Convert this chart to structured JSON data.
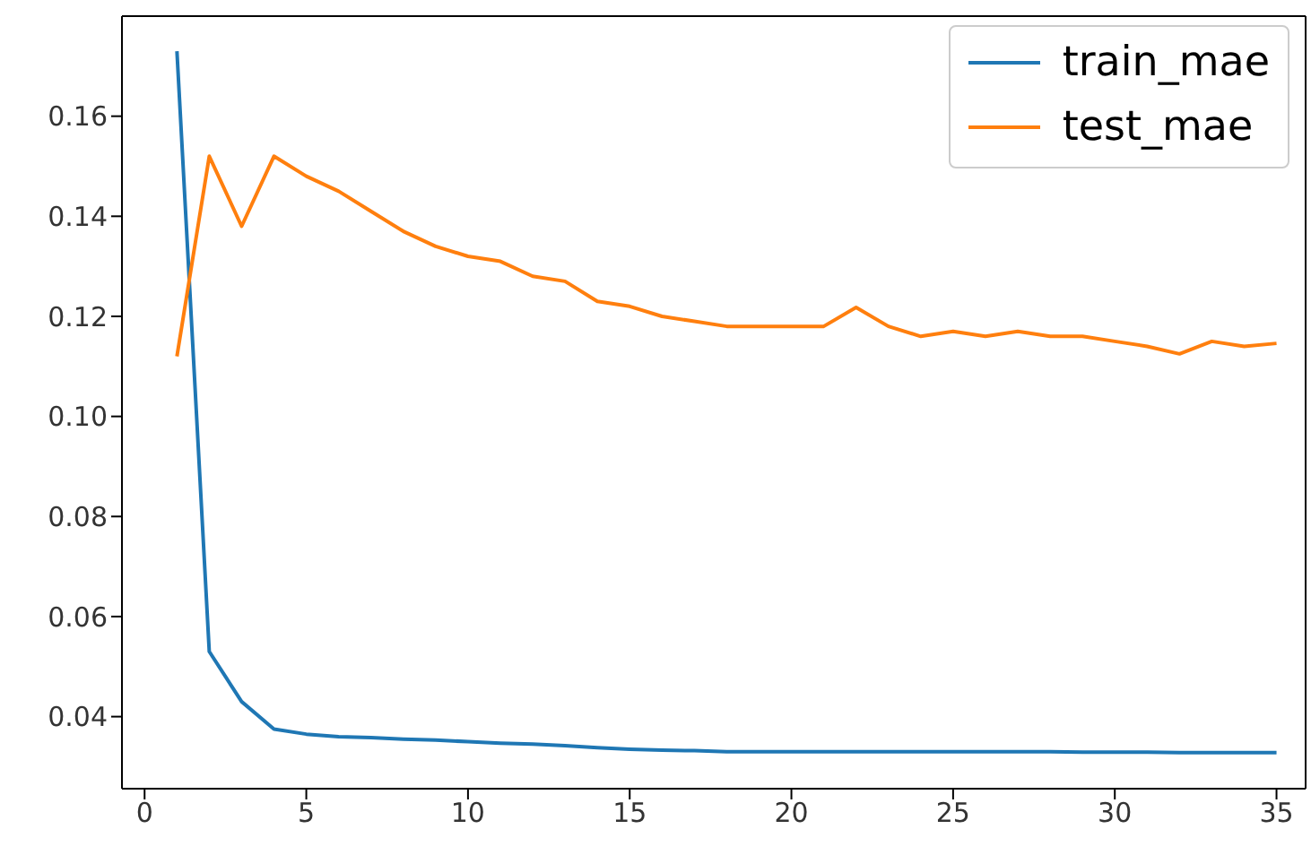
{
  "chart_data": {
    "type": "line",
    "x": [
      1,
      2,
      3,
      4,
      5,
      6,
      7,
      8,
      9,
      10,
      11,
      12,
      13,
      14,
      15,
      16,
      17,
      18,
      19,
      20,
      21,
      22,
      23,
      24,
      25,
      26,
      27,
      28,
      29,
      30,
      31,
      32,
      33,
      34,
      35
    ],
    "series": [
      {
        "name": "train_mae",
        "color": "#1f77b4",
        "values": [
          0.173,
          0.053,
          0.043,
          0.0375,
          0.0365,
          0.036,
          0.0358,
          0.0355,
          0.0353,
          0.035,
          0.0347,
          0.0345,
          0.0342,
          0.0338,
          0.0335,
          0.0333,
          0.0332,
          0.033,
          0.033,
          0.033,
          0.033,
          0.033,
          0.033,
          0.033,
          0.033,
          0.033,
          0.033,
          0.033,
          0.0329,
          0.0329,
          0.0329,
          0.0328,
          0.0328,
          0.0328,
          0.0328
        ]
      },
      {
        "name": "test_mae",
        "color": "#ff7f0e",
        "values": [
          0.112,
          0.152,
          0.138,
          0.152,
          0.148,
          0.145,
          0.141,
          0.137,
          0.134,
          0.132,
          0.131,
          0.128,
          0.127,
          0.123,
          0.122,
          0.12,
          0.119,
          0.118,
          0.118,
          0.118,
          0.118,
          0.1218,
          0.118,
          0.116,
          0.117,
          0.116,
          0.117,
          0.116,
          0.116,
          0.115,
          0.114,
          0.1125,
          0.115,
          0.114,
          0.1146
        ]
      }
    ],
    "xlim": [
      -0.7,
      35.9
    ],
    "xticks": [
      0,
      5,
      10,
      15,
      20,
      25,
      30,
      35
    ],
    "ylim": [
      0.0256,
      0.18
    ],
    "yticks": [
      0.04,
      0.06,
      0.08,
      {
        "value": 0.1,
        "label": "0.10"
      },
      0.12,
      0.14,
      0.16
    ],
    "grid": false,
    "legend": "top right",
    "marker": "none",
    "line_style": "solid"
  }
}
